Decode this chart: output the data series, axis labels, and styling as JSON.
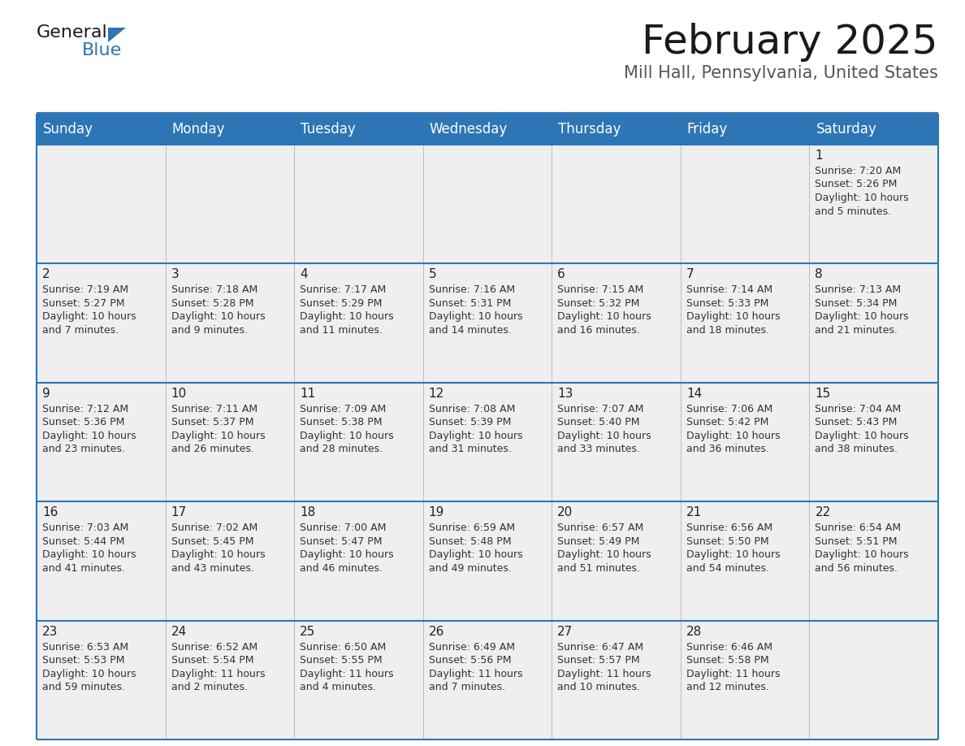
{
  "title": "February 2025",
  "subtitle": "Mill Hall, Pennsylvania, United States",
  "header_bg": "#2E75B6",
  "header_text_color": "#FFFFFF",
  "cell_bg": "#EFEFEF",
  "border_color": "#2E75B6",
  "text_color": "#222222",
  "info_text_color": "#333333",
  "day_headers": [
    "Sunday",
    "Monday",
    "Tuesday",
    "Wednesday",
    "Thursday",
    "Friday",
    "Saturday"
  ],
  "days": [
    {
      "day": 1,
      "col": 6,
      "row": 0,
      "sunrise": "7:20 AM",
      "sunset": "5:26 PM",
      "dl_h": "10 hours",
      "dl_m": "and 5 minutes."
    },
    {
      "day": 2,
      "col": 0,
      "row": 1,
      "sunrise": "7:19 AM",
      "sunset": "5:27 PM",
      "dl_h": "10 hours",
      "dl_m": "and 7 minutes."
    },
    {
      "day": 3,
      "col": 1,
      "row": 1,
      "sunrise": "7:18 AM",
      "sunset": "5:28 PM",
      "dl_h": "10 hours",
      "dl_m": "and 9 minutes."
    },
    {
      "day": 4,
      "col": 2,
      "row": 1,
      "sunrise": "7:17 AM",
      "sunset": "5:29 PM",
      "dl_h": "10 hours",
      "dl_m": "and 11 minutes."
    },
    {
      "day": 5,
      "col": 3,
      "row": 1,
      "sunrise": "7:16 AM",
      "sunset": "5:31 PM",
      "dl_h": "10 hours",
      "dl_m": "and 14 minutes."
    },
    {
      "day": 6,
      "col": 4,
      "row": 1,
      "sunrise": "7:15 AM",
      "sunset": "5:32 PM",
      "dl_h": "10 hours",
      "dl_m": "and 16 minutes."
    },
    {
      "day": 7,
      "col": 5,
      "row": 1,
      "sunrise": "7:14 AM",
      "sunset": "5:33 PM",
      "dl_h": "10 hours",
      "dl_m": "and 18 minutes."
    },
    {
      "day": 8,
      "col": 6,
      "row": 1,
      "sunrise": "7:13 AM",
      "sunset": "5:34 PM",
      "dl_h": "10 hours",
      "dl_m": "and 21 minutes."
    },
    {
      "day": 9,
      "col": 0,
      "row": 2,
      "sunrise": "7:12 AM",
      "sunset": "5:36 PM",
      "dl_h": "10 hours",
      "dl_m": "and 23 minutes."
    },
    {
      "day": 10,
      "col": 1,
      "row": 2,
      "sunrise": "7:11 AM",
      "sunset": "5:37 PM",
      "dl_h": "10 hours",
      "dl_m": "and 26 minutes."
    },
    {
      "day": 11,
      "col": 2,
      "row": 2,
      "sunrise": "7:09 AM",
      "sunset": "5:38 PM",
      "dl_h": "10 hours",
      "dl_m": "and 28 minutes."
    },
    {
      "day": 12,
      "col": 3,
      "row": 2,
      "sunrise": "7:08 AM",
      "sunset": "5:39 PM",
      "dl_h": "10 hours",
      "dl_m": "and 31 minutes."
    },
    {
      "day": 13,
      "col": 4,
      "row": 2,
      "sunrise": "7:07 AM",
      "sunset": "5:40 PM",
      "dl_h": "10 hours",
      "dl_m": "and 33 minutes."
    },
    {
      "day": 14,
      "col": 5,
      "row": 2,
      "sunrise": "7:06 AM",
      "sunset": "5:42 PM",
      "dl_h": "10 hours",
      "dl_m": "and 36 minutes."
    },
    {
      "day": 15,
      "col": 6,
      "row": 2,
      "sunrise": "7:04 AM",
      "sunset": "5:43 PM",
      "dl_h": "10 hours",
      "dl_m": "and 38 minutes."
    },
    {
      "day": 16,
      "col": 0,
      "row": 3,
      "sunrise": "7:03 AM",
      "sunset": "5:44 PM",
      "dl_h": "10 hours",
      "dl_m": "and 41 minutes."
    },
    {
      "day": 17,
      "col": 1,
      "row": 3,
      "sunrise": "7:02 AM",
      "sunset": "5:45 PM",
      "dl_h": "10 hours",
      "dl_m": "and 43 minutes."
    },
    {
      "day": 18,
      "col": 2,
      "row": 3,
      "sunrise": "7:00 AM",
      "sunset": "5:47 PM",
      "dl_h": "10 hours",
      "dl_m": "and 46 minutes."
    },
    {
      "day": 19,
      "col": 3,
      "row": 3,
      "sunrise": "6:59 AM",
      "sunset": "5:48 PM",
      "dl_h": "10 hours",
      "dl_m": "and 49 minutes."
    },
    {
      "day": 20,
      "col": 4,
      "row": 3,
      "sunrise": "6:57 AM",
      "sunset": "5:49 PM",
      "dl_h": "10 hours",
      "dl_m": "and 51 minutes."
    },
    {
      "day": 21,
      "col": 5,
      "row": 3,
      "sunrise": "6:56 AM",
      "sunset": "5:50 PM",
      "dl_h": "10 hours",
      "dl_m": "and 54 minutes."
    },
    {
      "day": 22,
      "col": 6,
      "row": 3,
      "sunrise": "6:54 AM",
      "sunset": "5:51 PM",
      "dl_h": "10 hours",
      "dl_m": "and 56 minutes."
    },
    {
      "day": 23,
      "col": 0,
      "row": 4,
      "sunrise": "6:53 AM",
      "sunset": "5:53 PM",
      "dl_h": "10 hours",
      "dl_m": "and 59 minutes."
    },
    {
      "day": 24,
      "col": 1,
      "row": 4,
      "sunrise": "6:52 AM",
      "sunset": "5:54 PM",
      "dl_h": "11 hours",
      "dl_m": "and 2 minutes."
    },
    {
      "day": 25,
      "col": 2,
      "row": 4,
      "sunrise": "6:50 AM",
      "sunset": "5:55 PM",
      "dl_h": "11 hours",
      "dl_m": "and 4 minutes."
    },
    {
      "day": 26,
      "col": 3,
      "row": 4,
      "sunrise": "6:49 AM",
      "sunset": "5:56 PM",
      "dl_h": "11 hours",
      "dl_m": "and 7 minutes."
    },
    {
      "day": 27,
      "col": 4,
      "row": 4,
      "sunrise": "6:47 AM",
      "sunset": "5:57 PM",
      "dl_h": "11 hours",
      "dl_m": "and 10 minutes."
    },
    {
      "day": 28,
      "col": 5,
      "row": 4,
      "sunrise": "6:46 AM",
      "sunset": "5:58 PM",
      "dl_h": "11 hours",
      "dl_m": "and 12 minutes."
    }
  ]
}
